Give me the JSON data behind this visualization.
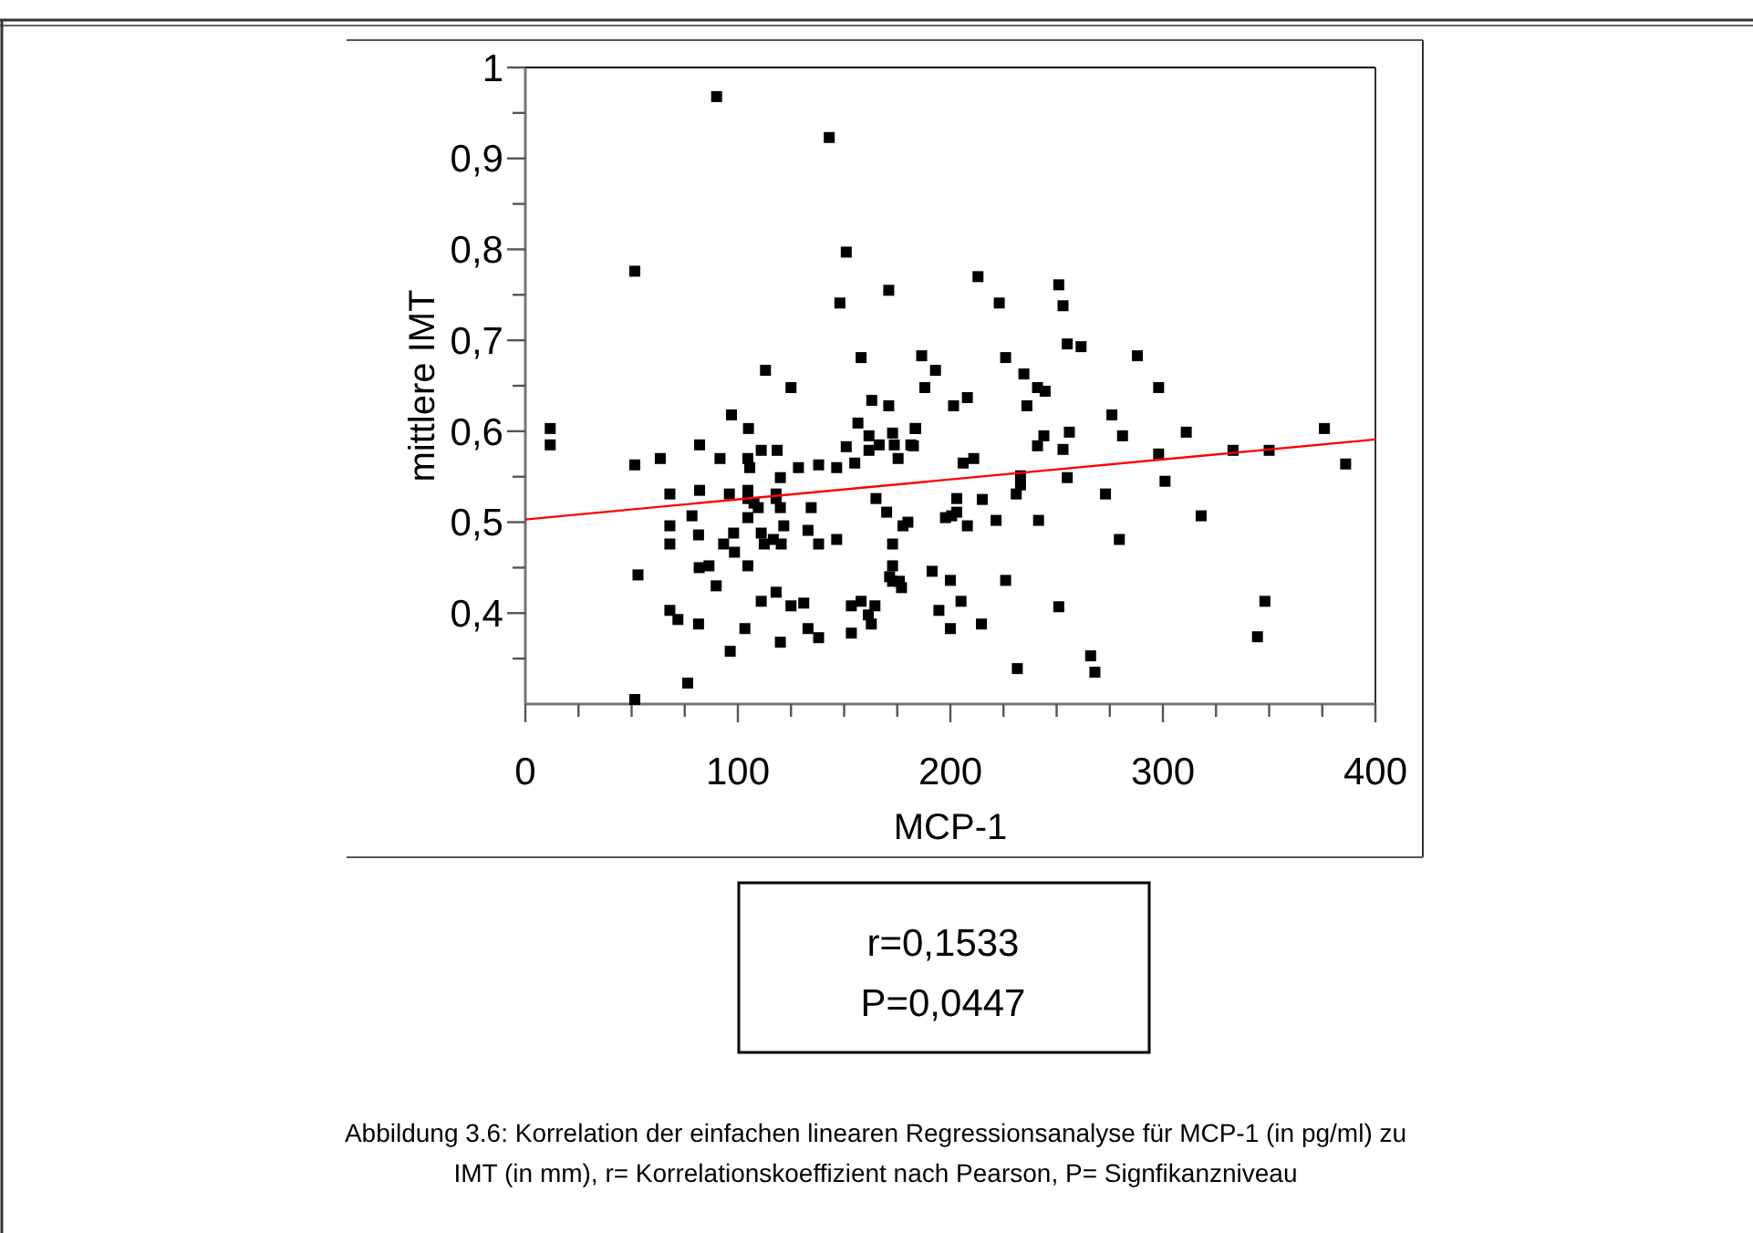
{
  "chart_data": {
    "type": "scatter",
    "xlabel": "MCP-1",
    "ylabel": "mittlere IMT",
    "xlim": [
      0,
      400
    ],
    "ylim": [
      0.3,
      1
    ],
    "xticks": [
      0,
      {
        "value": 25,
        "label": null
      },
      {
        "value": 50,
        "label": null
      },
      {
        "value": 75,
        "label": null
      },
      100,
      {
        "value": 125,
        "label": null
      },
      {
        "value": 150,
        "label": null
      },
      {
        "value": 175,
        "label": null
      },
      200,
      {
        "value": 225,
        "label": null
      },
      {
        "value": 250,
        "label": null
      },
      {
        "value": 275,
        "label": null
      },
      300,
      {
        "value": 325,
        "label": null
      },
      {
        "value": 350,
        "label": null
      },
      {
        "value": 375,
        "label": null
      },
      400
    ],
    "yticks": [
      {
        "value": 0.35,
        "label": null
      },
      {
        "value": 0.4,
        "label": "0,4"
      },
      {
        "value": 0.45,
        "label": null
      },
      {
        "value": 0.5,
        "label": "0,5"
      },
      {
        "value": 0.55,
        "label": null
      },
      {
        "value": 0.6,
        "label": "0,6"
      },
      {
        "value": 0.65,
        "label": null
      },
      {
        "value": 0.7,
        "label": "0,7"
      },
      {
        "value": 0.75,
        "label": null
      },
      {
        "value": 0.8,
        "label": "0,8"
      },
      {
        "value": 0.85,
        "label": null
      },
      {
        "value": 0.9,
        "label": "0,9"
      },
      {
        "value": 0.95,
        "label": null
      },
      1
    ],
    "marker": "square",
    "series": [
      {
        "type": "scatter",
        "color": "#000000",
        "x": [
          90,
          143,
          51.5,
          151,
          148,
          171,
          158,
          186.5,
          193,
          113,
          125,
          188,
          163,
          171,
          97,
          156.5,
          213,
          251,
          223,
          253,
          255,
          261.5,
          288,
          226,
          234.6,
          241,
          244.6,
          298,
          201.5,
          208,
          236,
          276,
          376,
          256,
          281,
          311,
          244,
          183.7,
          182.6,
          241,
          253,
          298,
          333,
          350,
          386,
          206,
          211,
          233,
          233,
          231,
          255,
          301,
          273,
          203,
          215,
          197.7,
          200.6,
          203,
          208,
          221.5,
          241.5,
          318,
          279.5,
          191.4,
          200,
          226,
          194.6,
          205,
          251,
          348,
          200,
          214.6,
          344.5,
          231.5,
          266,
          268,
          11.7,
          11.7,
          51.5,
          63.5,
          82,
          105,
          91.6,
          104.7,
          105.6,
          111,
          118.5,
          120,
          128.5,
          138,
          146.5,
          151,
          155,
          161.7,
          161.7,
          166.5,
          172.8,
          173.6,
          175.4,
          181.4,
          183.4,
          68,
          82,
          96,
          104.7,
          104.7,
          107.6,
          109.6,
          118,
          118,
          120,
          134.5,
          165,
          170,
          78.4,
          68,
          68,
          81.5,
          98,
          93.3,
          98.4,
          104.7,
          111,
          112.4,
          116.7,
          120.4,
          121.6,
          133,
          138,
          146.5,
          177.7,
          180,
          172.8,
          53,
          81.8,
          86.4,
          89.8,
          104.7,
          172.8,
          171.4,
          172.8,
          176,
          177,
          118,
          111,
          125,
          131,
          153.4,
          158,
          164.5,
          161.4,
          162.8,
          68,
          71.8,
          81.5,
          103.3,
          133,
          138,
          120,
          153.4,
          96.4,
          76.4,
          51.5
        ],
        "values": [
          0.968,
          0.923,
          0.776,
          0.797,
          0.741,
          0.755,
          0.681,
          0.683,
          0.667,
          0.667,
          0.648,
          0.648,
          0.634,
          0.628,
          0.618,
          0.609,
          0.77,
          0.761,
          0.741,
          0.738,
          0.696,
          0.693,
          0.683,
          0.681,
          0.663,
          0.648,
          0.644,
          0.648,
          0.628,
          0.637,
          0.628,
          0.618,
          0.603,
          0.599,
          0.595,
          0.599,
          0.595,
          0.603,
          0.584,
          0.584,
          0.58,
          0.575,
          0.579,
          0.579,
          0.564,
          0.565,
          0.57,
          0.551,
          0.541,
          0.531,
          0.549,
          0.545,
          0.531,
          0.526,
          0.525,
          0.505,
          0.507,
          0.511,
          0.496,
          0.502,
          0.502,
          0.507,
          0.481,
          0.446,
          0.436,
          0.436,
          0.403,
          0.413,
          0.407,
          0.413,
          0.383,
          0.388,
          0.374,
          0.339,
          0.353,
          0.335,
          0.603,
          0.585,
          0.563,
          0.57,
          0.585,
          0.603,
          0.57,
          0.57,
          0.56,
          0.579,
          0.579,
          0.549,
          0.56,
          0.563,
          0.56,
          0.583,
          0.565,
          0.595,
          0.579,
          0.585,
          0.598,
          0.585,
          0.57,
          0.585,
          0.603,
          0.531,
          0.535,
          0.531,
          0.535,
          0.526,
          0.521,
          0.516,
          0.531,
          0.526,
          0.516,
          0.516,
          0.526,
          0.511,
          0.507,
          0.496,
          0.476,
          0.486,
          0.488,
          0.476,
          0.467,
          0.505,
          0.488,
          0.476,
          0.481,
          0.476,
          0.496,
          0.491,
          0.476,
          0.481,
          0.496,
          0.5,
          0.476,
          0.442,
          0.45,
          0.452,
          0.43,
          0.452,
          0.452,
          0.44,
          0.435,
          0.435,
          0.428,
          0.423,
          0.413,
          0.408,
          0.411,
          0.408,
          0.413,
          0.408,
          0.398,
          0.388,
          0.403,
          0.393,
          0.388,
          0.383,
          0.383,
          0.373,
          0.368,
          0.378,
          0.358,
          0.323,
          0.305
        ]
      },
      {
        "type": "line",
        "color": "#ff0000",
        "marker": "none",
        "x": [
          0,
          400
        ],
        "values": [
          0.503,
          0.591
        ]
      }
    ],
    "annotations": [
      "r=0,1533",
      "P=0,0447",
      "Abbildung 3.6: Korrelation der einfachen linearen Regressionsanalyse für MCP-1 (in pg/ml) zu IMT (in mm), r= Korrelationskoeffizient nach Pearson, P= Signfikanzniveau"
    ]
  }
}
